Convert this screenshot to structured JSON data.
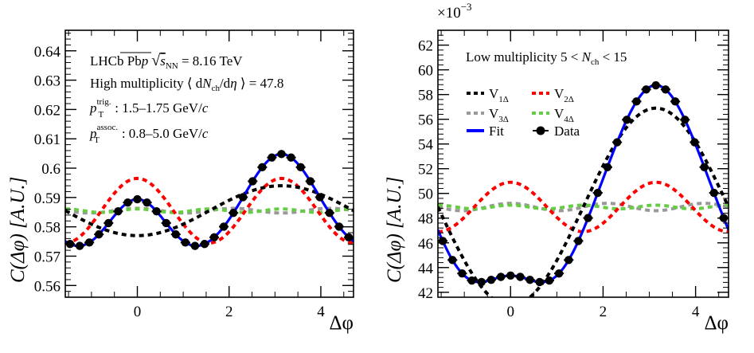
{
  "chart_data": [
    {
      "type": "line",
      "xlabel": "Δφ",
      "ylabel": "C(Δφ) [A.U.]",
      "xlim": [
        -1.5708,
        4.7124
      ],
      "ylim": [
        0.556,
        0.647
      ],
      "xticks": [
        0,
        2,
        4
      ],
      "yticks": [
        0.56,
        0.57,
        0.58,
        0.59,
        0.6,
        0.61,
        0.62,
        0.63,
        0.64
      ],
      "ytick_labels": [
        "0.56",
        "0.57",
        "0.58",
        "0.59",
        "0.6",
        "0.61",
        "0.62",
        "0.63",
        "0.64"
      ],
      "annotations": {
        "line1_prefix": "LHCb Pb",
        "line1_p": "p",
        "line1_sqrt": "s",
        "line1_nn": "NN",
        "line1_energy": " = 8.16 TeV",
        "line2_prefix": "High multiplicity ⟨ d",
        "line2_n": "N",
        "line2_ch": "ch",
        "line2_deta": "/d",
        "line2_eta": "η",
        "line2_suffix": " ⟩ = 47.8",
        "line3_p": "p",
        "line3_sub": "T",
        "line3_sup": "trig.",
        "line3_range": ": 1.5–1.75 GeV/",
        "line3_c": "c",
        "line4_p": "p",
        "line4_sub": "T",
        "line4_sup": "assoc.",
        "line4_range": ": 0.8–5.0 GeV/",
        "line4_c": "c"
      },
      "baseline": 0.5855,
      "series": [
        {
          "name": "V1Δ",
          "color": "#000000",
          "style": "dashed",
          "harmonic": 1,
          "amplitude": -0.0085
        },
        {
          "name": "V2Δ",
          "color": "#ff0000",
          "style": "dashed",
          "harmonic": 2,
          "amplitude": 0.011
        },
        {
          "name": "V3Δ",
          "color": "#999999",
          "style": "dashed",
          "harmonic": 3,
          "amplitude": 0.0008
        },
        {
          "name": "V4Δ",
          "color": "#66cc44",
          "style": "dashed",
          "harmonic": 4,
          "amplitude": 0.0006
        },
        {
          "name": "Fit",
          "color": "#0000ff",
          "style": "solid",
          "harmonic": 0,
          "amplitude": 0
        },
        {
          "name": "Data",
          "color": "#000000",
          "style": "markers",
          "harmonic": 0,
          "amplitude": 0
        }
      ]
    },
    {
      "type": "line",
      "xlabel": "Δφ",
      "ylabel": "C(Δφ) [A.U.]",
      "xlim": [
        -1.5708,
        4.7124
      ],
      "ylim": [
        41.6,
        63.2
      ],
      "scale_label": "×10",
      "scale_exp": "−3",
      "xticks": [
        0,
        2,
        4
      ],
      "yticks": [
        42,
        44,
        46,
        48,
        50,
        52,
        54,
        56,
        58,
        60,
        62
      ],
      "ytick_labels": [
        "42",
        "44",
        "46",
        "48",
        "50",
        "52",
        "54",
        "56",
        "58",
        "60",
        "62"
      ],
      "annotations": {
        "line1_prefix": "Low multiplicity 5 < ",
        "line1_n": "N",
        "line1_ch": "ch",
        "line1_suffix": " < 15"
      },
      "baseline": 48.9,
      "series": [
        {
          "name": "V1Δ",
          "color": "#000000",
          "style": "dashed",
          "harmonic": 1,
          "amplitude": -8.0
        },
        {
          "name": "V2Δ",
          "color": "#ff0000",
          "style": "dashed",
          "harmonic": 2,
          "amplitude": 2.0
        },
        {
          "name": "V3Δ",
          "color": "#999999",
          "style": "dashed",
          "harmonic": 3,
          "amplitude": 0.3
        },
        {
          "name": "V4Δ",
          "color": "#66cc44",
          "style": "dashed",
          "harmonic": 4,
          "amplitude": 0.15
        },
        {
          "name": "Fit",
          "color": "#0000ff",
          "style": "solid",
          "harmonic": 0,
          "amplitude": 0
        },
        {
          "name": "Data",
          "color": "#000000",
          "style": "markers",
          "harmonic": 0,
          "amplitude": 0
        }
      ]
    }
  ],
  "legend": {
    "v1": "V",
    "v1_sub": "1Δ",
    "v2": "V",
    "v2_sub": "2Δ",
    "v3": "V",
    "v3_sub": "3Δ",
    "v4": "V",
    "v4_sub": "4Δ",
    "fit": "Fit",
    "data": "Data"
  }
}
